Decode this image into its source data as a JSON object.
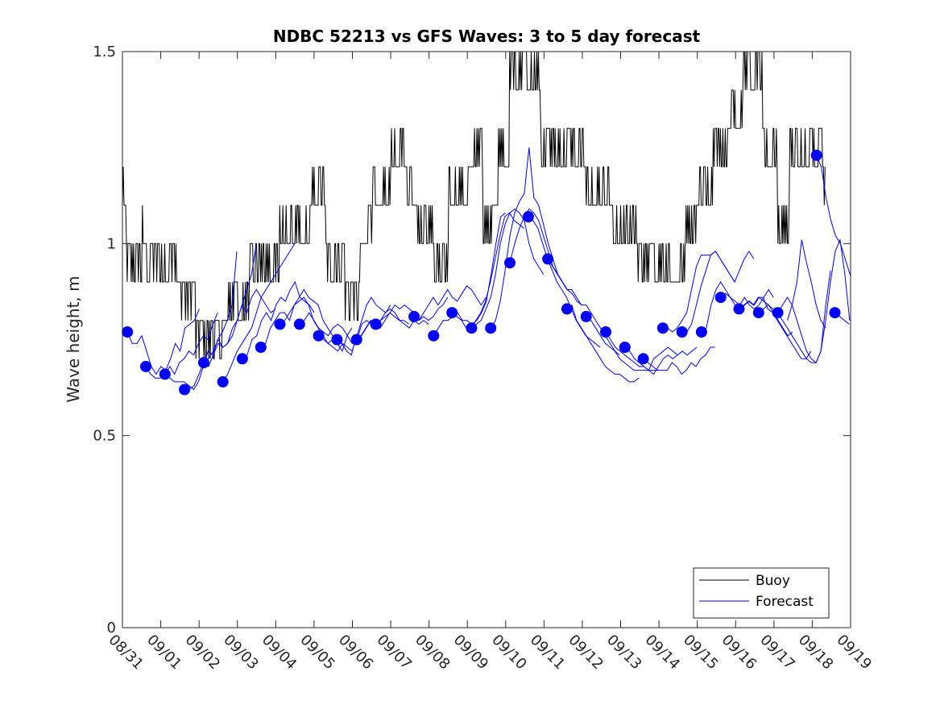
{
  "chart_data": {
    "type": "line",
    "title": "NDBC 52213 vs GFS Waves: 3 to 5 day forecast",
    "xlabel": "",
    "ylabel": "Wave height, m",
    "ylim": [
      0,
      1.5
    ],
    "yticks": [
      0,
      0.5,
      1,
      1.5
    ],
    "ytick_labels": [
      "0",
      "0.5",
      "1",
      "1.5"
    ],
    "xlim_days": [
      0,
      19
    ],
    "xtick_labels": [
      "08/31",
      "09/01",
      "09/02",
      "09/03",
      "09/04",
      "09/05",
      "09/06",
      "09/07",
      "09/08",
      "09/09",
      "09/10",
      "09/11",
      "09/12",
      "09/13",
      "09/14",
      "09/15",
      "09/16",
      "09/17",
      "09/18",
      "09/19"
    ],
    "grid": false,
    "legend": {
      "position": "bottom-right",
      "entries": [
        {
          "label": "Buoy",
          "color": "#000000"
        },
        {
          "label": "Forecast",
          "color": "#0000ff"
        }
      ]
    },
    "colors": {
      "buoy": "#000000",
      "forecast": "#0000ff",
      "marker": "#0000ff"
    },
    "buoy_segments": [
      {
        "from": 0.0,
        "to": 0.1,
        "base": 1.1,
        "alt": 1.2
      },
      {
        "from": 0.1,
        "to": 1.0,
        "base": 1.0,
        "alt": 0.9
      },
      {
        "from": 0.5,
        "to": 0.6,
        "base": 1.0,
        "alt": 1.1
      },
      {
        "from": 1.0,
        "to": 1.4,
        "base": 0.9,
        "alt": 1.0
      },
      {
        "from": 1.4,
        "to": 1.9,
        "base": 0.9,
        "alt": 0.8
      },
      {
        "from": 1.9,
        "to": 2.6,
        "base": 0.8,
        "alt": 0.7
      },
      {
        "from": 2.6,
        "to": 3.3,
        "base": 0.8,
        "alt": 0.9
      },
      {
        "from": 3.3,
        "to": 4.1,
        "base": 0.9,
        "alt": 1.0
      },
      {
        "from": 4.1,
        "to": 4.9,
        "base": 1.0,
        "alt": 1.1
      },
      {
        "from": 4.9,
        "to": 5.3,
        "base": 1.1,
        "alt": 1.2
      },
      {
        "from": 5.3,
        "to": 5.8,
        "base": 1.0,
        "alt": 0.9
      },
      {
        "from": 5.8,
        "to": 6.2,
        "base": 0.9,
        "alt": 0.8
      },
      {
        "from": 6.2,
        "to": 6.5,
        "base": 1.0,
        "alt": 1.1
      },
      {
        "from": 6.5,
        "to": 7.0,
        "base": 1.1,
        "alt": 1.2
      },
      {
        "from": 7.0,
        "to": 7.4,
        "base": 1.2,
        "alt": 1.3
      },
      {
        "from": 7.4,
        "to": 7.7,
        "base": 1.2,
        "alt": 1.1
      },
      {
        "from": 7.7,
        "to": 8.1,
        "base": 1.0,
        "alt": 1.1
      },
      {
        "from": 8.1,
        "to": 8.5,
        "base": 0.9,
        "alt": 1.0
      },
      {
        "from": 8.5,
        "to": 9.0,
        "base": 1.1,
        "alt": 1.2
      },
      {
        "from": 9.0,
        "to": 9.4,
        "base": 1.2,
        "alt": 1.3
      },
      {
        "from": 9.4,
        "to": 9.8,
        "base": 1.1,
        "alt": 1.0
      },
      {
        "from": 9.8,
        "to": 10.1,
        "base": 1.2,
        "alt": 1.3
      },
      {
        "from": 10.1,
        "to": 10.9,
        "base": 1.4,
        "alt": 1.5
      },
      {
        "from": 10.9,
        "to": 11.3,
        "base": 1.3,
        "alt": 1.2
      },
      {
        "from": 11.3,
        "to": 12.1,
        "base": 1.2,
        "alt": 1.3
      },
      {
        "from": 12.1,
        "to": 12.8,
        "base": 1.1,
        "alt": 1.2
      },
      {
        "from": 12.8,
        "to": 13.4,
        "base": 1.0,
        "alt": 1.1
      },
      {
        "from": 13.4,
        "to": 14.1,
        "base": 1.0,
        "alt": 0.9
      },
      {
        "from": 14.1,
        "to": 14.7,
        "base": 0.9,
        "alt": 1.0
      },
      {
        "from": 14.7,
        "to": 15.0,
        "base": 1.0,
        "alt": 1.1
      },
      {
        "from": 15.0,
        "to": 15.4,
        "base": 1.1,
        "alt": 1.2
      },
      {
        "from": 15.4,
        "to": 15.8,
        "base": 1.2,
        "alt": 1.3
      },
      {
        "from": 15.8,
        "to": 16.2,
        "base": 1.3,
        "alt": 1.4
      },
      {
        "from": 16.2,
        "to": 16.7,
        "base": 1.4,
        "alt": 1.5
      },
      {
        "from": 16.7,
        "to": 17.1,
        "base": 1.2,
        "alt": 1.3
      },
      {
        "from": 17.1,
        "to": 17.4,
        "base": 1.0,
        "alt": 1.1
      },
      {
        "from": 17.4,
        "to": 17.7,
        "base": 1.2,
        "alt": 1.3
      },
      {
        "from": 17.7,
        "to": 18.3,
        "base": 1.2,
        "alt": 1.3
      },
      {
        "from": 18.3,
        "to": 18.35,
        "base": 1.2,
        "alt": 1.1
      }
    ],
    "forecast_markers": [
      {
        "day": 0.13,
        "value": 0.77
      },
      {
        "day": 0.61,
        "value": 0.68
      },
      {
        "day": 1.11,
        "value": 0.66
      },
      {
        "day": 1.62,
        "value": 0.62
      },
      {
        "day": 2.12,
        "value": 0.69
      },
      {
        "day": 2.62,
        "value": 0.64
      },
      {
        "day": 3.13,
        "value": 0.7
      },
      {
        "day": 3.61,
        "value": 0.73
      },
      {
        "day": 4.11,
        "value": 0.79
      },
      {
        "day": 4.62,
        "value": 0.79
      },
      {
        "day": 5.12,
        "value": 0.76
      },
      {
        "day": 5.6,
        "value": 0.75
      },
      {
        "day": 6.11,
        "value": 0.75
      },
      {
        "day": 6.61,
        "value": 0.79
      },
      {
        "day": 7.61,
        "value": 0.81
      },
      {
        "day": 8.12,
        "value": 0.76
      },
      {
        "day": 8.6,
        "value": 0.82
      },
      {
        "day": 9.11,
        "value": 0.78
      },
      {
        "day": 9.61,
        "value": 0.78
      },
      {
        "day": 10.11,
        "value": 0.95
      },
      {
        "day": 10.59,
        "value": 1.07
      },
      {
        "day": 11.1,
        "value": 0.96
      },
      {
        "day": 11.6,
        "value": 0.83
      },
      {
        "day": 12.1,
        "value": 0.81
      },
      {
        "day": 12.61,
        "value": 0.77
      },
      {
        "day": 13.11,
        "value": 0.73
      },
      {
        "day": 13.59,
        "value": 0.7
      },
      {
        "day": 14.1,
        "value": 0.78
      },
      {
        "day": 14.6,
        "value": 0.77
      },
      {
        "day": 15.11,
        "value": 0.77
      },
      {
        "day": 15.61,
        "value": 0.86
      },
      {
        "day": 16.09,
        "value": 0.83
      },
      {
        "day": 16.6,
        "value": 0.82
      },
      {
        "day": 17.1,
        "value": 0.82
      },
      {
        "day": 18.11,
        "value": 1.23
      },
      {
        "day": 18.59,
        "value": 0.82
      }
    ],
    "forecast_runs": [
      {
        "start": 0.13,
        "step": 0.125,
        "values": [
          0.77,
          0.74,
          0.74,
          0.76,
          0.72,
          0.68,
          0.66,
          0.68,
          0.67,
          0.7,
          0.74,
          0.72,
          0.78,
          0.79,
          0.8,
          0.83
        ]
      },
      {
        "start": 0.61,
        "step": 0.125,
        "values": [
          0.68,
          0.66,
          0.65,
          0.65,
          0.66,
          0.68,
          0.66,
          0.69,
          0.7,
          0.72,
          0.71,
          0.74,
          0.76,
          0.75,
          0.79,
          0.82
        ]
      },
      {
        "start": 1.11,
        "step": 0.125,
        "values": [
          0.66,
          0.65,
          0.64,
          0.64,
          0.64,
          0.63,
          0.62,
          0.64,
          0.68,
          0.72,
          0.71,
          0.75,
          0.77,
          0.8,
          0.84,
          0.98
        ]
      },
      {
        "start": 1.62,
        "step": 0.125,
        "values": [
          0.62,
          0.62,
          0.63,
          0.66,
          0.69,
          0.68,
          0.71,
          0.74,
          0.73,
          0.74,
          0.78,
          0.8,
          0.84,
          0.88,
          0.92,
          1.0
        ]
      },
      {
        "start": 2.12,
        "step": 0.125,
        "values": [
          0.69,
          0.7,
          0.72,
          0.75,
          0.73,
          0.74,
          0.76,
          0.8,
          0.84,
          0.82,
          0.86,
          0.88,
          0.86,
          0.84,
          0.82,
          0.83
        ]
      },
      {
        "start": 2.62,
        "step": 0.125,
        "values": [
          0.64,
          0.66,
          0.69,
          0.72,
          0.74,
          0.76,
          0.78,
          0.82,
          0.86,
          0.88,
          0.9,
          0.92,
          0.94,
          0.96,
          0.98,
          1.0
        ]
      },
      {
        "start": 3.13,
        "step": 0.125,
        "values": [
          0.7,
          0.71,
          0.75,
          0.76,
          0.8,
          0.82,
          0.8,
          0.84,
          0.86,
          0.85,
          0.88,
          0.9,
          0.86,
          0.85,
          0.84,
          0.82
        ]
      },
      {
        "start": 3.61,
        "step": 0.125,
        "values": [
          0.73,
          0.74,
          0.78,
          0.8,
          0.82,
          0.82,
          0.8,
          0.84,
          0.85,
          0.86,
          0.84,
          0.8,
          0.78,
          0.76,
          0.74,
          0.75
        ]
      },
      {
        "start": 4.11,
        "step": 0.125,
        "values": [
          0.79,
          0.8,
          0.82,
          0.84,
          0.86,
          0.88,
          0.86,
          0.85,
          0.84,
          0.8,
          0.78,
          0.76,
          0.74,
          0.72,
          0.76,
          0.78
        ]
      },
      {
        "start": 4.62,
        "step": 0.125,
        "values": [
          0.79,
          0.8,
          0.82,
          0.8,
          0.78,
          0.77,
          0.76,
          0.78,
          0.79,
          0.78,
          0.76,
          0.74,
          0.75,
          0.79,
          0.8,
          0.79
        ]
      },
      {
        "start": 5.12,
        "step": 0.125,
        "values": [
          0.76,
          0.75,
          0.74,
          0.73,
          0.72,
          0.74,
          0.73,
          0.72,
          0.76,
          0.8,
          0.84,
          0.86,
          0.84,
          0.83,
          0.82,
          0.84
        ]
      },
      {
        "start": 5.6,
        "step": 0.125,
        "values": [
          0.75,
          0.74,
          0.72,
          0.71,
          0.76,
          0.76,
          0.78,
          0.8,
          0.79,
          0.78,
          0.8,
          0.82,
          0.81,
          0.8,
          0.8,
          0.79
        ]
      },
      {
        "start": 6.11,
        "step": 0.125,
        "values": [
          0.75,
          0.76,
          0.78,
          0.8,
          0.79,
          0.8,
          0.82,
          0.83,
          0.82,
          0.8,
          0.79,
          0.78,
          0.8,
          0.79,
          0.8,
          0.79
        ]
      },
      {
        "start": 6.61,
        "step": 0.125,
        "values": [
          0.79,
          0.8,
          0.81,
          0.82,
          0.84,
          0.83,
          0.84,
          0.83,
          0.82,
          0.8,
          0.81,
          0.8,
          0.81,
          0.83,
          0.84,
          0.86
        ]
      },
      {
        "start": 7.61,
        "step": 0.125,
        "values": [
          0.81,
          0.8,
          0.82,
          0.84,
          0.86,
          0.84,
          0.86,
          0.88,
          0.86,
          0.85,
          0.87,
          0.89,
          0.88,
          0.86,
          0.84,
          0.86
        ]
      },
      {
        "start": 8.12,
        "step": 0.125,
        "values": [
          0.76,
          0.78,
          0.8,
          0.8,
          0.81,
          0.82,
          0.8,
          0.8,
          0.79,
          0.8,
          0.82,
          0.85,
          0.92,
          1.0,
          1.07,
          1.08
        ]
      },
      {
        "start": 8.6,
        "step": 0.125,
        "values": [
          0.82,
          0.81,
          0.8,
          0.78,
          0.78,
          0.8,
          0.82,
          0.85,
          0.9,
          0.96,
          1.02,
          1.07,
          1.08,
          1.06,
          1.05,
          1.04
        ]
      },
      {
        "start": 9.11,
        "step": 0.125,
        "values": [
          0.78,
          0.79,
          0.8,
          0.83,
          0.86,
          0.92,
          1.0,
          1.05,
          1.08,
          1.09,
          1.08,
          1.06,
          1.0,
          0.96,
          0.94,
          0.92
        ]
      },
      {
        "start": 9.61,
        "step": 0.125,
        "values": [
          0.78,
          0.8,
          0.85,
          0.93,
          1.02,
          1.08,
          1.11,
          1.13,
          1.25,
          1.12,
          1.1,
          1.05,
          1.0,
          0.96,
          0.92,
          0.9
        ]
      },
      {
        "start": 10.11,
        "step": 0.125,
        "values": [
          0.95,
          1.0,
          1.04,
          1.07,
          1.09,
          1.08,
          1.06,
          1.02,
          0.98,
          0.94,
          0.92,
          0.9,
          0.88,
          0.87,
          0.85,
          0.84
        ]
      },
      {
        "start": 10.59,
        "step": 0.125,
        "values": [
          1.07,
          1.06,
          1.04,
          1.0,
          0.96,
          0.93,
          0.9,
          0.88,
          0.86,
          0.83,
          0.8,
          0.78,
          0.76,
          0.75,
          0.74,
          0.73
        ]
      },
      {
        "start": 11.1,
        "step": 0.125,
        "values": [
          0.96,
          0.94,
          0.92,
          0.9,
          0.88,
          0.88,
          0.86,
          0.84,
          0.84,
          0.82,
          0.8,
          0.78,
          0.76,
          0.74,
          0.72,
          0.71
        ]
      },
      {
        "start": 11.6,
        "step": 0.125,
        "values": [
          0.83,
          0.84,
          0.8,
          0.78,
          0.76,
          0.74,
          0.72,
          0.7,
          0.68,
          0.67,
          0.66,
          0.66,
          0.65,
          0.64,
          0.64,
          0.65
        ]
      },
      {
        "start": 12.1,
        "step": 0.125,
        "values": [
          0.81,
          0.8,
          0.78,
          0.76,
          0.74,
          0.73,
          0.72,
          0.7,
          0.69,
          0.68,
          0.67,
          0.67,
          0.67,
          0.67,
          0.67,
          0.67
        ]
      },
      {
        "start": 12.61,
        "step": 0.125,
        "values": [
          0.77,
          0.75,
          0.73,
          0.72,
          0.71,
          0.7,
          0.69,
          0.68,
          0.68,
          0.67,
          0.7,
          0.71,
          0.72,
          0.73,
          0.72,
          0.71
        ]
      },
      {
        "start": 13.11,
        "step": 0.125,
        "values": [
          0.73,
          0.72,
          0.7,
          0.69,
          0.68,
          0.67,
          0.66,
          0.68,
          0.7,
          0.71,
          0.7,
          0.71,
          0.72,
          0.71,
          0.72,
          0.73
        ]
      },
      {
        "start": 13.59,
        "step": 0.125,
        "values": [
          0.7,
          0.69,
          0.68,
          0.67,
          0.67,
          0.67,
          0.69,
          0.68,
          0.66,
          0.67,
          0.69,
          0.68,
          0.7,
          0.71,
          0.73,
          0.73
        ]
      },
      {
        "start": 14.1,
        "step": 0.125,
        "values": [
          0.78,
          0.78,
          0.77,
          0.78,
          0.8,
          0.82,
          0.88,
          0.94,
          0.97,
          0.97,
          0.97,
          0.98,
          0.96,
          0.94,
          0.92,
          0.9
        ]
      },
      {
        "start": 14.6,
        "step": 0.125,
        "values": [
          0.77,
          0.77,
          0.79,
          0.84,
          0.89,
          0.93,
          0.97,
          0.98,
          0.96,
          0.94,
          0.92,
          0.9,
          0.93,
          0.96,
          0.98,
          0.96
        ]
      },
      {
        "start": 15.11,
        "step": 0.125,
        "values": [
          0.77,
          0.78,
          0.84,
          0.88,
          0.9,
          0.88,
          0.86,
          0.85,
          0.84,
          0.86,
          0.84,
          0.83,
          0.84,
          0.86,
          0.88,
          0.86
        ]
      },
      {
        "start": 15.61,
        "step": 0.125,
        "values": [
          0.86,
          0.87,
          0.86,
          0.84,
          0.83,
          0.84,
          0.85,
          0.84,
          0.86,
          0.85,
          0.84,
          0.82,
          0.8,
          0.78,
          0.76,
          0.77
        ]
      },
      {
        "start": 16.09,
        "step": 0.125,
        "values": [
          0.83,
          0.84,
          0.85,
          0.84,
          0.86,
          0.86,
          0.83,
          0.82,
          0.8,
          0.78,
          0.76,
          0.74,
          0.72,
          0.7,
          0.7,
          0.72
        ]
      },
      {
        "start": 16.6,
        "step": 0.125,
        "values": [
          0.82,
          0.83,
          0.84,
          0.83,
          0.82,
          0.8,
          0.78,
          0.76,
          0.74,
          0.72,
          0.7,
          0.69,
          0.69,
          0.72,
          0.84,
          0.93
        ]
      },
      {
        "start": 17.1,
        "step": 0.125,
        "values": [
          0.82,
          0.84,
          0.86,
          0.84,
          0.8,
          0.76,
          0.72,
          0.7,
          0.69,
          0.72,
          0.8,
          0.9,
          0.98,
          1.01,
          0.92,
          0.8
        ]
      },
      {
        "start": 17.35,
        "step": 0.125,
        "values": [
          0.8,
          0.84,
          0.9,
          1.01,
          0.95,
          0.9,
          0.84,
          0.8,
          0.78
        ]
      },
      {
        "start": 18.11,
        "step": 0.125,
        "values": [
          1.23,
          1.2,
          1.12,
          1.06,
          1.02,
          1.0,
          0.96,
          0.92,
          0.88,
          0.87
        ]
      },
      {
        "start": 18.59,
        "step": 0.125,
        "values": [
          0.82,
          0.81,
          0.8,
          0.79
        ]
      }
    ]
  }
}
